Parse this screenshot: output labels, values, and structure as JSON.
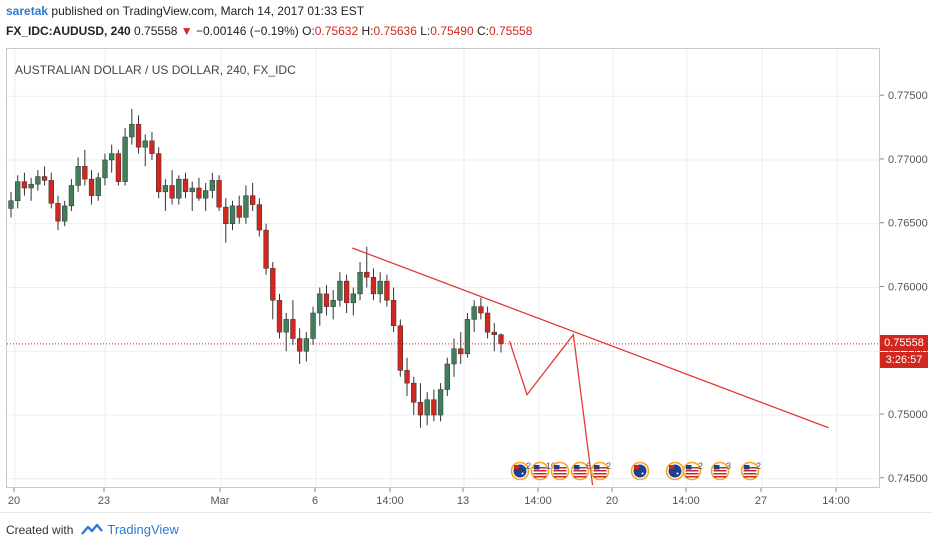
{
  "header": {
    "username": "saretak",
    "published_text": "published on TradingView.com, March 14, 2017 01:33 EST",
    "symbol_line": "FX_IDC:AUDUSD, 240",
    "last_price": "0.75558",
    "change_arrow": "▼",
    "change": "−0.00146 (−0.19%)",
    "o_label": "O:",
    "o_value": "0.75632",
    "h_label": "H:",
    "h_value": "0.75636",
    "l_label": "L:",
    "l_value": "0.75490",
    "c_label": "C:",
    "c_value": "0.75558"
  },
  "chart_title": "AUSTRALIAN DOLLAR / US DOLLAR, 240, FX_IDC",
  "price_tag": "0.75558",
  "countdown_tag": "3:26:57",
  "footer": {
    "created_with": "Created with",
    "brand": "TradingView"
  },
  "colors": {
    "up": "#3f7f59",
    "down": "#d0281f",
    "line": "#e53935",
    "grid": "#e9eef3",
    "accent": "#2e7bcf"
  },
  "chart_data": {
    "type": "candlestick",
    "title": "AUSTRALIAN DOLLAR / US DOLLAR, 240, FX_IDC",
    "y_ticks": [
      "0.77500",
      "0.77000",
      "0.76500",
      "0.76000",
      "0.75500",
      "0.75000",
      "0.74500"
    ],
    "y_range": [
      0.7442,
      0.7787
    ],
    "x_ticks": [
      "20",
      "23",
      "Mar",
      "6",
      "14:00",
      "13",
      "14:00",
      "20",
      "14:00",
      "27",
      "14:00"
    ],
    "current_price": 0.75558,
    "ohlc": [
      [
        0.7662,
        0.7675,
        0.7655,
        0.7668
      ],
      [
        0.7668,
        0.7688,
        0.7662,
        0.7683
      ],
      [
        0.7683,
        0.769,
        0.7672,
        0.7678
      ],
      [
        0.7678,
        0.7686,
        0.7668,
        0.7681
      ],
      [
        0.7681,
        0.7692,
        0.7676,
        0.7687
      ],
      [
        0.7687,
        0.7695,
        0.768,
        0.7684
      ],
      [
        0.7684,
        0.769,
        0.7662,
        0.7666
      ],
      [
        0.7666,
        0.7672,
        0.7645,
        0.7652
      ],
      [
        0.7652,
        0.7668,
        0.7648,
        0.7664
      ],
      [
        0.7664,
        0.7685,
        0.766,
        0.768
      ],
      [
        0.768,
        0.7702,
        0.7675,
        0.7695
      ],
      [
        0.7695,
        0.7708,
        0.768,
        0.7685
      ],
      [
        0.7685,
        0.7692,
        0.7665,
        0.7672
      ],
      [
        0.7672,
        0.769,
        0.7668,
        0.7686
      ],
      [
        0.7686,
        0.7705,
        0.768,
        0.77
      ],
      [
        0.77,
        0.7712,
        0.769,
        0.7705
      ],
      [
        0.7705,
        0.7708,
        0.768,
        0.7683
      ],
      [
        0.7683,
        0.7725,
        0.768,
        0.7718
      ],
      [
        0.7718,
        0.774,
        0.7712,
        0.7728
      ],
      [
        0.7728,
        0.7735,
        0.7705,
        0.771
      ],
      [
        0.771,
        0.772,
        0.7695,
        0.7715
      ],
      [
        0.7715,
        0.7722,
        0.77,
        0.7705
      ],
      [
        0.7705,
        0.771,
        0.767,
        0.7675
      ],
      [
        0.7675,
        0.7685,
        0.766,
        0.768
      ],
      [
        0.768,
        0.7692,
        0.7665,
        0.767
      ],
      [
        0.767,
        0.7688,
        0.7665,
        0.7685
      ],
      [
        0.7685,
        0.769,
        0.767,
        0.7675
      ],
      [
        0.7675,
        0.7683,
        0.766,
        0.7678
      ],
      [
        0.7678,
        0.7686,
        0.7668,
        0.767
      ],
      [
        0.767,
        0.7682,
        0.766,
        0.7676
      ],
      [
        0.7676,
        0.769,
        0.767,
        0.7684
      ],
      [
        0.7684,
        0.7688,
        0.766,
        0.7663
      ],
      [
        0.7663,
        0.767,
        0.7635,
        0.765
      ],
      [
        0.765,
        0.7668,
        0.7645,
        0.7664
      ],
      [
        0.7664,
        0.7672,
        0.765,
        0.7655
      ],
      [
        0.7655,
        0.768,
        0.765,
        0.7672
      ],
      [
        0.7672,
        0.7682,
        0.766,
        0.7665
      ],
      [
        0.7665,
        0.767,
        0.764,
        0.7645
      ],
      [
        0.7645,
        0.765,
        0.761,
        0.7615
      ],
      [
        0.7615,
        0.762,
        0.7575,
        0.759
      ],
      [
        0.759,
        0.7595,
        0.756,
        0.7565
      ],
      [
        0.7565,
        0.758,
        0.755,
        0.7575
      ],
      [
        0.7575,
        0.759,
        0.7555,
        0.756
      ],
      [
        0.756,
        0.7568,
        0.754,
        0.755
      ],
      [
        0.755,
        0.7565,
        0.7542,
        0.756
      ],
      [
        0.756,
        0.7585,
        0.7555,
        0.758
      ],
      [
        0.758,
        0.76,
        0.757,
        0.7595
      ],
      [
        0.7595,
        0.7602,
        0.7578,
        0.7585
      ],
      [
        0.7585,
        0.7598,
        0.7575,
        0.759
      ],
      [
        0.759,
        0.7612,
        0.7585,
        0.7605
      ],
      [
        0.7605,
        0.761,
        0.758,
        0.7588
      ],
      [
        0.7588,
        0.76,
        0.7578,
        0.7595
      ],
      [
        0.7595,
        0.762,
        0.759,
        0.7612
      ],
      [
        0.7612,
        0.7632,
        0.76,
        0.7608
      ],
      [
        0.7608,
        0.7615,
        0.759,
        0.7595
      ],
      [
        0.7595,
        0.7612,
        0.7588,
        0.7605
      ],
      [
        0.7605,
        0.761,
        0.7585,
        0.759
      ],
      [
        0.759,
        0.76,
        0.7565,
        0.757
      ],
      [
        0.757,
        0.7575,
        0.753,
        0.7535
      ],
      [
        0.7535,
        0.7545,
        0.7515,
        0.7525
      ],
      [
        0.7525,
        0.753,
        0.75,
        0.751
      ],
      [
        0.751,
        0.7525,
        0.749,
        0.75
      ],
      [
        0.75,
        0.7518,
        0.7492,
        0.7512
      ],
      [
        0.7512,
        0.752,
        0.7495,
        0.75
      ],
      [
        0.75,
        0.7525,
        0.7495,
        0.752
      ],
      [
        0.752,
        0.7545,
        0.7515,
        0.754
      ],
      [
        0.754,
        0.756,
        0.753,
        0.7552
      ],
      [
        0.7552,
        0.7565,
        0.754,
        0.7548
      ],
      [
        0.7548,
        0.758,
        0.7545,
        0.7575
      ],
      [
        0.7575,
        0.759,
        0.7565,
        0.7585
      ],
      [
        0.7585,
        0.7592,
        0.7575,
        0.758
      ],
      [
        0.758,
        0.7585,
        0.756,
        0.7565
      ],
      [
        0.7565,
        0.7572,
        0.755,
        0.7563
      ],
      [
        0.7563,
        0.7564,
        0.7549,
        0.7556
      ]
    ],
    "trendline_points_pct": [
      [
        0.395,
        0.7631
      ],
      [
        0.94,
        0.749
      ]
    ],
    "projection_points_pct": [
      [
        0.575,
        0.7558
      ],
      [
        0.595,
        0.7516
      ],
      [
        0.648,
        0.7563
      ],
      [
        0.67,
        0.7445
      ]
    ]
  }
}
